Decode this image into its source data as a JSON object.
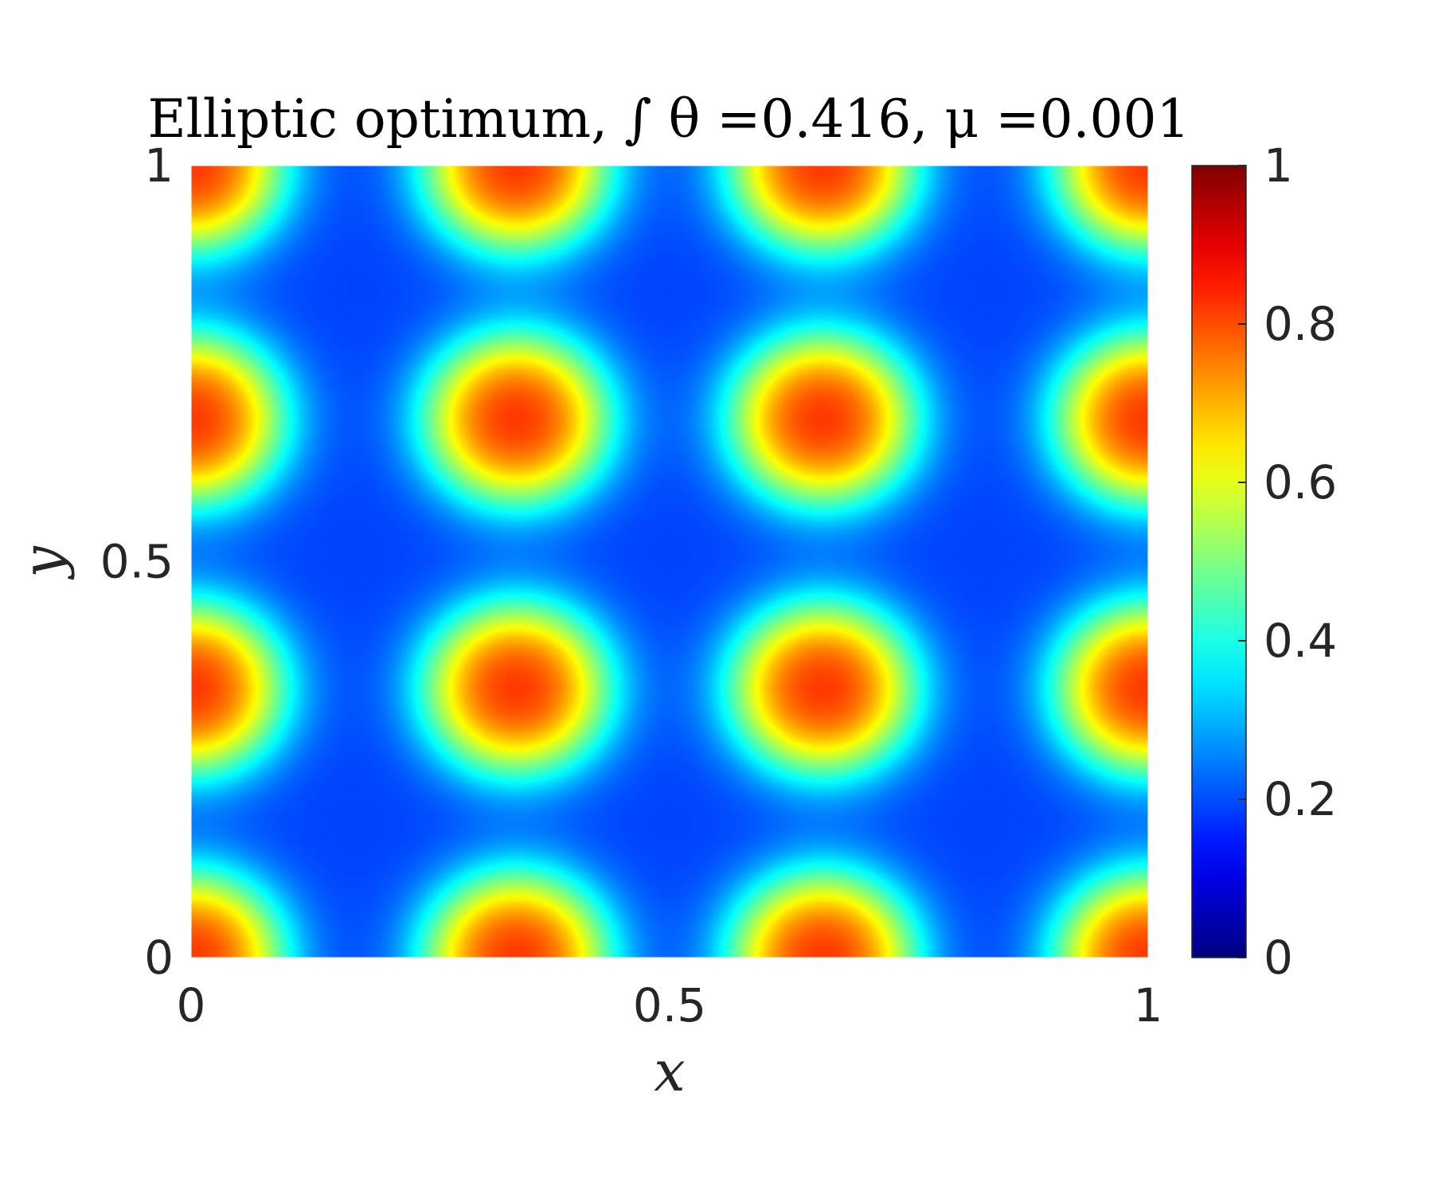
{
  "chart_data": {
    "type": "heatmap",
    "title": "Elliptic optimum, ∫ θ =0.416, μ =0.001",
    "xlabel": "x",
    "ylabel": "y",
    "xlim": [
      0,
      1
    ],
    "ylim": [
      0,
      1
    ],
    "x_ticks": [
      "0",
      "0.5",
      "1"
    ],
    "y_ticks": [
      "0",
      "0.5",
      "1"
    ],
    "x_tick_values": [
      0,
      0.5,
      1
    ],
    "y_tick_values": [
      0,
      0.5,
      1
    ],
    "colorbar": {
      "colormap": "jet",
      "limits": [
        0,
        1
      ],
      "ticks": [
        "0",
        "0.2",
        "0.4",
        "0.6",
        "0.8",
        "1"
      ],
      "tick_values": [
        0,
        0.2,
        0.4,
        0.6,
        0.8,
        1
      ]
    },
    "field": {
      "baseline": 0.19,
      "peak_value": 0.93,
      "blobs": [
        {
          "x": 0.34,
          "y": 0.68
        },
        {
          "x": 0.66,
          "y": 0.68
        },
        {
          "x": 0.34,
          "y": 0.34
        },
        {
          "x": 0.66,
          "y": 0.34
        },
        {
          "x": 0.0,
          "y": 0.68
        },
        {
          "x": 0.0,
          "y": 0.34
        },
        {
          "x": 1.0,
          "y": 0.68
        },
        {
          "x": 1.0,
          "y": 0.34
        },
        {
          "x": 0.34,
          "y": 1.0
        },
        {
          "x": 0.66,
          "y": 1.0
        },
        {
          "x": 0.34,
          "y": 0.0
        },
        {
          "x": 0.66,
          "y": 0.0
        },
        {
          "x": 0.0,
          "y": 1.0
        },
        {
          "x": 1.0,
          "y": 1.0
        },
        {
          "x": 0.0,
          "y": 0.0
        },
        {
          "x": 1.0,
          "y": 0.0
        }
      ]
    },
    "grid": false
  }
}
